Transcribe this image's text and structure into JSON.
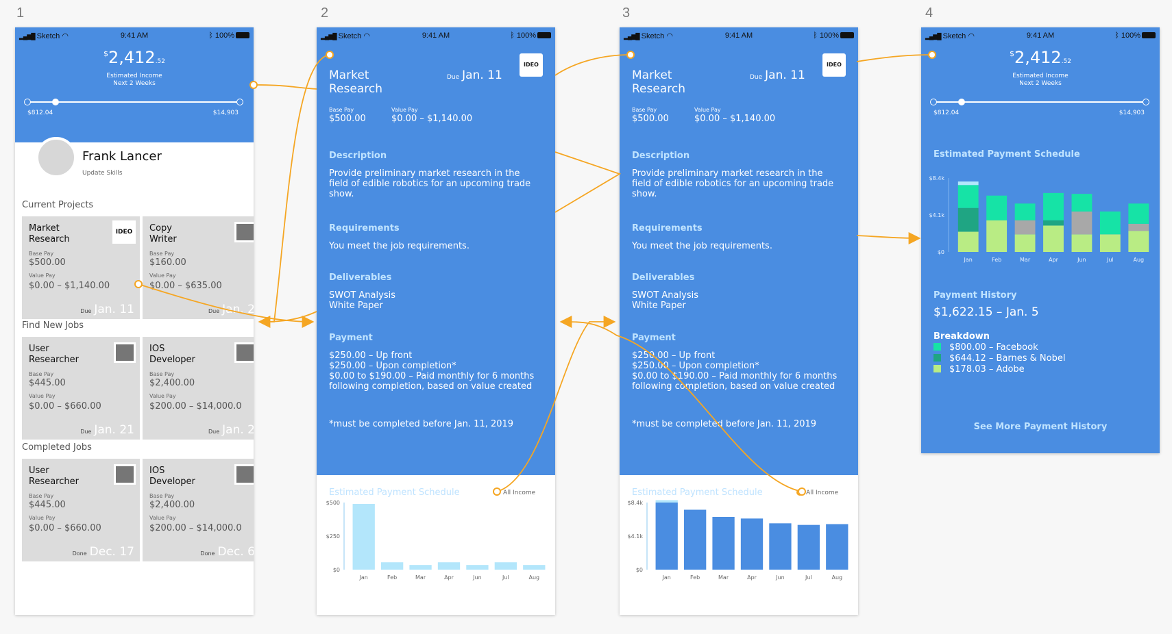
{
  "artboards": [
    "1",
    "2",
    "3",
    "4"
  ],
  "status_bar": {
    "carrier": "Sketch",
    "time": "9:41 AM",
    "battery": "100%"
  },
  "income": {
    "currency": "$",
    "whole": "2,412",
    "cents": ".52",
    "label1": "Estimated Income",
    "label2": "Next 2 Weeks",
    "min": "$812.04",
    "max": "$14,903"
  },
  "profile": {
    "name": "Frank Lancer",
    "update": "Update Skills"
  },
  "sections": {
    "current": "Current Projects",
    "find": "Find New Jobs",
    "completed": "Completed Jobs"
  },
  "labels": {
    "base_pay": "Base Pay",
    "value_pay": "Value Pay",
    "due": "Due",
    "done": "Done"
  },
  "current_projects": [
    {
      "title": "Market\nResearch",
      "logo": "IDEO",
      "base": "$500.00",
      "value": "$0.00 – $1,140.00",
      "date": "Jan. 11"
    },
    {
      "title": "Copy\nWriter",
      "base": "$160.00",
      "value": "$0.00 – $635.00",
      "date": "Jan. 2"
    }
  ],
  "new_jobs": [
    {
      "title": "User\nResearcher",
      "base": "$445.00",
      "value": "$0.00 – $660.00",
      "date": "Jan. 21"
    },
    {
      "title": "IOS\nDeveloper",
      "base": "$2,400.00",
      "value": "$200.00 – $14,000.0",
      "date": "Jan. 2"
    }
  ],
  "completed_jobs": [
    {
      "title": "User\nResearcher",
      "base": "$445.00",
      "value": "$0.00 – $660.00",
      "date": "Dec. 17"
    },
    {
      "title": "IOS\nDeveloper",
      "base": "$2,400.00",
      "value": "$200.00 – $14,000.0",
      "date": "Dec. 6"
    }
  ],
  "job": {
    "title": "Market\nResearch",
    "due_label": "Due",
    "due": "Jan. 11",
    "logo": "IDEO",
    "base_pay_label": "Base Pay",
    "base_pay": "$500.00",
    "value_pay_label": "Value Pay",
    "value_pay": "$0.00 – $1,140.00",
    "description_h": "Description",
    "description": "Provide preliminary market research in the field of edible robotics for an upcoming trade show.",
    "requirements_h": "Requirements",
    "requirements": "You meet the job requirements.",
    "deliverables_h": "Deliverables",
    "deliverables": "SWOT Analysis\nWhite Paper",
    "payment_h": "Payment",
    "payment": "$250.00 – Up front\n$250.00 – Upon completion*\n$0.00 to $190.00 – Paid monthly for 6 months following completion, based on value created",
    "note": "*must be completed before Jan. 11, 2019",
    "chart_title": "Estimated Payment Schedule",
    "legend": "All Income"
  },
  "history": {
    "schedule_title": "Estimated Payment Schedule",
    "history_h": "Payment History",
    "history_value": "$1,622.15 – Jan. 5",
    "breakdown_h": "Breakdown",
    "breakdown": [
      {
        "label": "$800.00 – Facebook",
        "color": "#16e3a6"
      },
      {
        "label": "$644.12 – Barnes & Nobel",
        "color": "#1fa583"
      },
      {
        "label": "$178.03 – Adobe",
        "color": "#b9ec84"
      }
    ],
    "more": "See More Payment History"
  },
  "colors": {
    "blue": "#4a8de1",
    "light_bar": "#b3e6fb",
    "accent": "#f5a623"
  },
  "chart_data": [
    {
      "type": "bar",
      "title": "Estimated Payment Schedule",
      "categories": [
        "Jan",
        "Feb",
        "Mar",
        "Apr",
        "Jun",
        "Jul",
        "Aug"
      ],
      "values": [
        490,
        55,
        35,
        55,
        35,
        55,
        35
      ],
      "ylim": [
        0,
        500
      ],
      "yticks": [
        "$0",
        "$250",
        "$500"
      ],
      "legend": "All Income",
      "color": "#b3e6fb"
    },
    {
      "type": "bar",
      "title": "Estimated Payment Schedule",
      "categories": [
        "Jan",
        "Feb",
        "Mar",
        "Apr",
        "Jun",
        "Jul",
        "Aug"
      ],
      "values": [
        8.4,
        7.5,
        6.6,
        6.4,
        5.8,
        5.6,
        5.7
      ],
      "highlight": [
        0.3,
        0,
        0,
        0,
        0,
        0,
        0
      ],
      "ylim": [
        0,
        8.4
      ],
      "yticks": [
        "$0",
        "$4.1k",
        "$8.4k"
      ],
      "legend": "All Income",
      "color": "#4a8de1"
    },
    {
      "type": "bar",
      "title": "Estimated Payment Schedule",
      "categories": [
        "Jan",
        "Feb",
        "Mar",
        "Apr",
        "Jun",
        "Jul",
        "Aug"
      ],
      "ylim": [
        0,
        8.4
      ],
      "yticks": [
        "$0",
        "$4.1k",
        "$8.4k"
      ],
      "series": [
        {
          "values": [
            2.3,
            3.6,
            2.0,
            3.0,
            2.0,
            2.0,
            2.4
          ],
          "color": "#b9ec84"
        },
        {
          "values": [
            2.7,
            0,
            1.6,
            0.6,
            2.6,
            0,
            0.8
          ],
          "color": "#1fa583"
        },
        {
          "values": [
            2.6,
            2.8,
            1.9,
            3.1,
            2.0,
            2.6,
            2.3
          ],
          "color": "#16e3a6"
        },
        {
          "values": [
            0.4,
            0,
            0,
            0,
            0,
            0,
            0
          ],
          "color": "#b3e6fb"
        }
      ],
      "series_colors_gray_mid": [
        "#a8a8a8"
      ]
    }
  ]
}
